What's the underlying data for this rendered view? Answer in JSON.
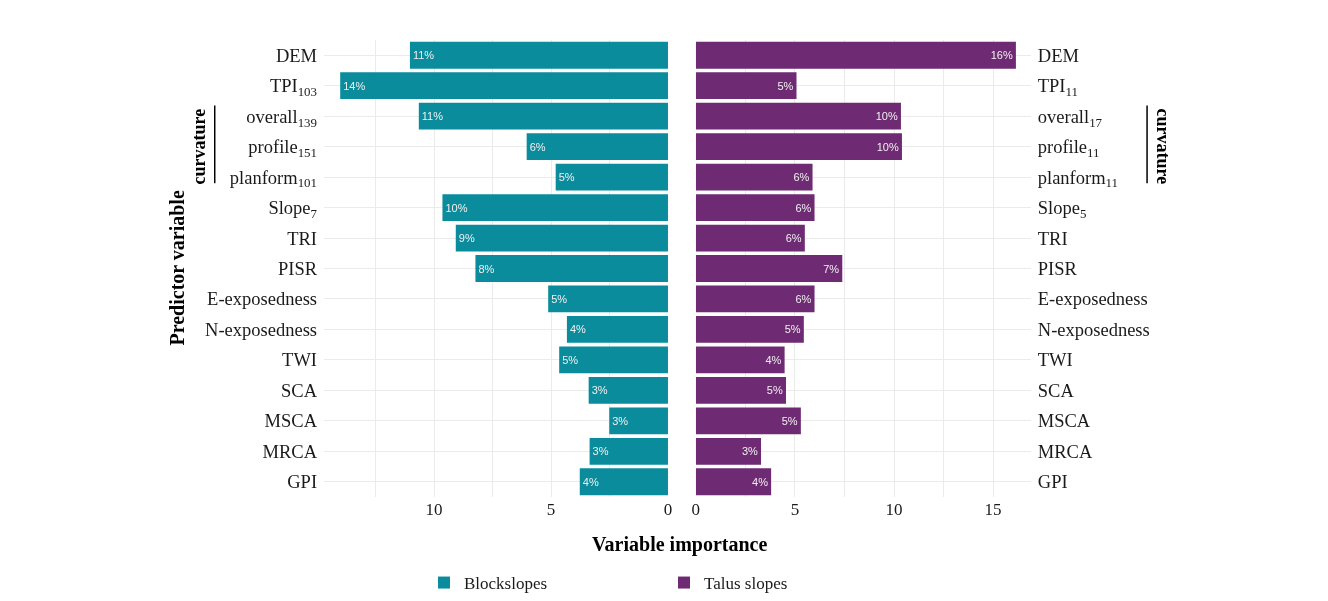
{
  "chart_data": [
    {
      "type": "bar",
      "orientation": "horizontal",
      "xlabel": "Variable importance",
      "ylabel": "Predictor variable",
      "categories": [
        "DEM",
        "TPI$_{103}$",
        "overall$_{139}$",
        "profile$_{151}$",
        "planform$_{101}$",
        "Slope$_{7}$",
        "TRI",
        "PISR",
        "E-exposedness",
        "N-exposedness",
        "TWI",
        "SCA",
        "MSCA",
        "MRCA",
        "GPI"
      ],
      "series": [
        {
          "name": "Blockslopes",
          "color": "#0a8c9c",
          "values": [
            11.03,
            14.01,
            10.65,
            6.04,
            4.8,
            9.64,
            9.07,
            8.23,
            5.12,
            4.32,
            4.65,
            3.39,
            2.51,
            3.35,
            3.77
          ],
          "value_labels": [
            "11%",
            "14%",
            "11%",
            "6%",
            "5%",
            "10%",
            "9%",
            "8%",
            "5%",
            "4%",
            "5%",
            "3%",
            "3%",
            "3%",
            "4%"
          ]
        }
      ],
      "xlim": [
        14.7,
        0
      ],
      "xticks": [
        {
          "value": 12.5,
          "label": null
        },
        10,
        {
          "value": 7.5,
          "label": null
        },
        5,
        {
          "value": 2.5,
          "label": null
        },
        0
      ],
      "annotations": [
        "curvature"
      ],
      "grid": true,
      "legend": "bottom"
    },
    {
      "type": "bar",
      "orientation": "horizontal",
      "categories": [
        "DEM",
        "TPI$_{11}$",
        "overall$_{17}$",
        "profile$_{11}$",
        "planform$_{11}$",
        "Slope$_{5}$",
        "TRI",
        "PISR",
        "E-exposedness",
        "N-exposedness",
        "TWI",
        "SCA",
        "MSCA",
        "MRCA",
        "GPI"
      ],
      "series": [
        {
          "name": "Talus slopes",
          "color": "#6e2a72",
          "values": [
            16.15,
            5.08,
            10.35,
            10.4,
            5.89,
            5.99,
            5.5,
            7.39,
            5.99,
            5.45,
            4.48,
            4.55,
            5.3,
            3.29,
            3.8
          ],
          "value_labels": [
            "16%",
            "5%",
            "10%",
            "10%",
            "6%",
            "6%",
            "6%",
            "7%",
            "6%",
            "5%",
            "4%",
            "5%",
            "5%",
            "3%",
            "4%"
          ]
        }
      ],
      "xlim": [
        0,
        16.9
      ],
      "xticks": [
        0,
        {
          "value": 2.5,
          "label": null
        },
        5,
        {
          "value": 7.5,
          "label": null
        },
        10,
        {
          "value": 12.5,
          "label": null
        },
        15
      ],
      "annotations": [
        "curvature"
      ],
      "grid": true,
      "legend": "bottom"
    }
  ]
}
